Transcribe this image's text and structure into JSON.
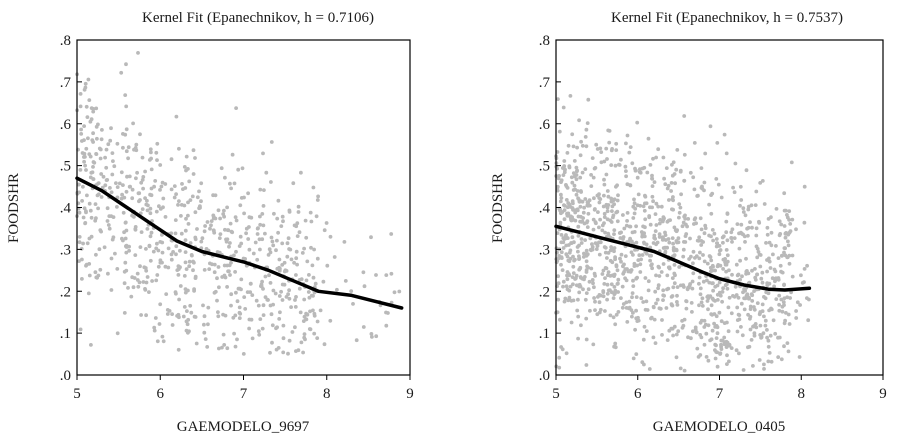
{
  "colors": {
    "points": "#b9b9b9",
    "fit_line": "#000000",
    "axes": "#000000",
    "background": "#ffffff"
  },
  "chart_data": [
    {
      "type": "scatter",
      "title": "Kernel Fit (Epanechnikov, h = 0.7106)",
      "xlabel": "GAEMODELO_9697",
      "ylabel": "FOODSHR",
      "xlim": [
        5,
        9
      ],
      "ylim": [
        0,
        0.8
      ],
      "x_ticks": [
        "5",
        "6",
        "7",
        "8",
        "9"
      ],
      "y_ticks": [
        ".0",
        ".1",
        ".2",
        ".3",
        ".4",
        ".5",
        ".6",
        ".7",
        ".8"
      ],
      "grid": false,
      "series": [
        {
          "type": "scatter",
          "points_approx": 800,
          "x_range": [
            5.0,
            8.9
          ],
          "y_range": [
            0.05,
            0.77
          ]
        },
        {
          "type": "line",
          "x": [
            5.0,
            5.3,
            5.6,
            5.9,
            6.2,
            6.5,
            6.8,
            7.0,
            7.3,
            7.6,
            7.9,
            8.3,
            8.9
          ],
          "y": [
            0.47,
            0.44,
            0.4,
            0.36,
            0.32,
            0.295,
            0.28,
            0.27,
            0.25,
            0.225,
            0.2,
            0.19,
            0.16
          ]
        }
      ]
    },
    {
      "type": "scatter",
      "title": "Kernel Fit (Epanechnikov, h = 0.7537)",
      "xlabel": "GAEMODELO_0405",
      "ylabel": "FOODSHR",
      "xlim": [
        5,
        9
      ],
      "ylim": [
        0,
        0.8
      ],
      "x_ticks": [
        "5",
        "6",
        "7",
        "8",
        "9"
      ],
      "y_ticks": [
        ".0",
        ".1",
        ".2",
        ".3",
        ".4",
        ".5",
        ".6",
        ".7",
        ".8"
      ],
      "grid": false,
      "series": [
        {
          "type": "scatter",
          "points_approx": 1300,
          "x_range": [
            5.0,
            8.1
          ],
          "y_range": [
            0.01,
            0.72
          ]
        },
        {
          "type": "line",
          "x": [
            5.0,
            5.3,
            5.6,
            5.9,
            6.2,
            6.5,
            6.8,
            7.0,
            7.3,
            7.6,
            7.8,
            8.1
          ],
          "y": [
            0.355,
            0.34,
            0.325,
            0.31,
            0.295,
            0.27,
            0.245,
            0.23,
            0.215,
            0.205,
            0.203,
            0.207
          ]
        }
      ]
    }
  ]
}
